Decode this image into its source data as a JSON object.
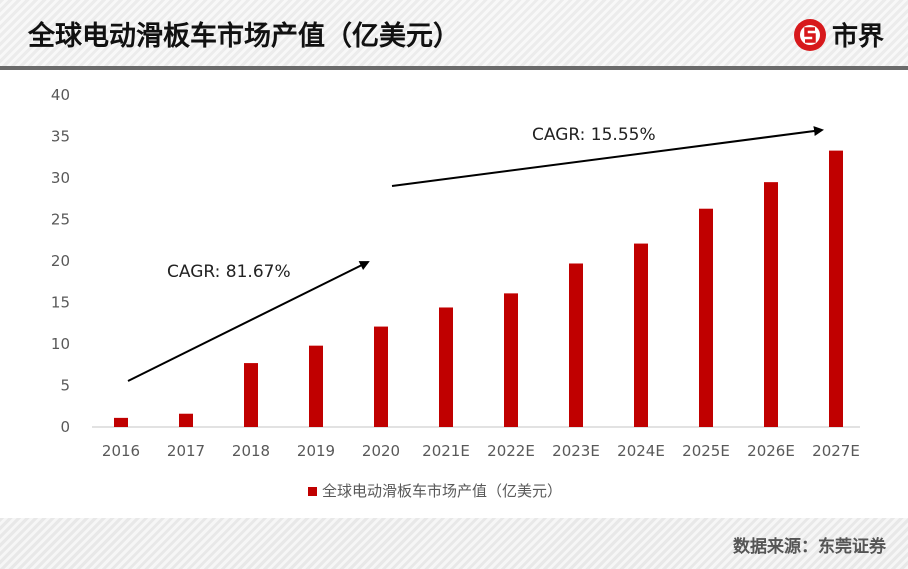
{
  "header": {
    "title": "全球电动滑板车市场产值（亿美元）",
    "logo_text": "市界"
  },
  "footer": {
    "source": "数据来源：东莞证券"
  },
  "colors": {
    "bar": "#C00000",
    "header_line": "#6b6b6b"
  },
  "chart_data": {
    "type": "bar",
    "title": "",
    "categories": [
      "2016",
      "2017",
      "2018",
      "2019",
      "2020",
      "2021E",
      "2022E",
      "2023E",
      "2024E",
      "2025E",
      "2026E",
      "2027E"
    ],
    "series": [
      {
        "name": "全球电动滑板车市场产值（亿美元）",
        "values": [
          1.1,
          1.6,
          7.7,
          9.8,
          12.1,
          14.4,
          16.1,
          19.7,
          22.1,
          26.3,
          29.5,
          33.3
        ]
      }
    ],
    "ylim": [
      0,
      40
    ],
    "yticks": [
      0,
      5,
      10,
      15,
      20,
      25,
      30,
      35,
      40
    ],
    "grid": false,
    "legend": "bottom",
    "annotations": [
      {
        "text": "CAGR: 81.67%",
        "from": "2016",
        "to": "2020"
      },
      {
        "text": "CAGR: 15.55%",
        "from": "2020",
        "to": "2027E"
      }
    ]
  }
}
